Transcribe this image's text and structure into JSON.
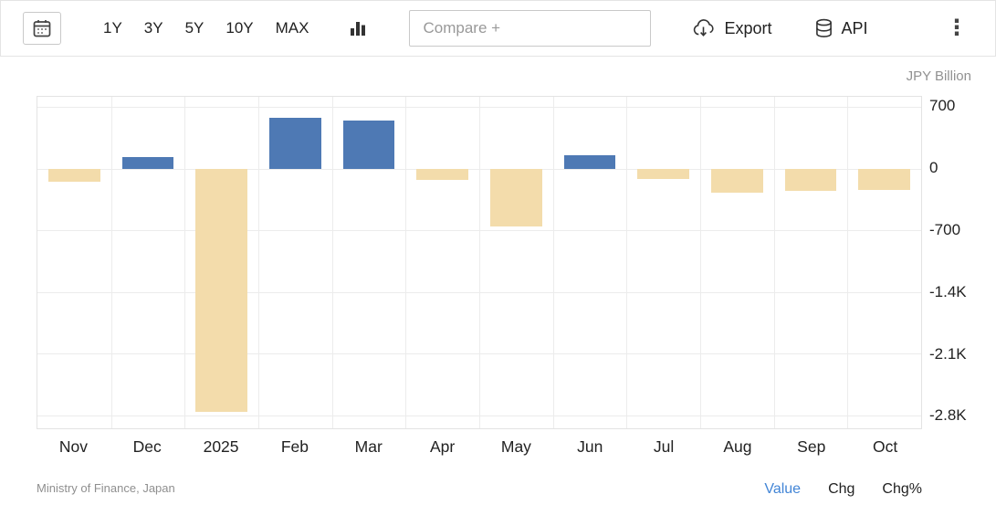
{
  "toolbar": {
    "range_buttons": [
      "1Y",
      "3Y",
      "5Y",
      "10Y",
      "MAX"
    ],
    "compare_placeholder": "Compare +",
    "export_label": "Export",
    "api_label": "API"
  },
  "chart_data": {
    "type": "bar",
    "unit_label": "JPY Billion",
    "categories": [
      "Nov",
      "Dec",
      "2025",
      "Feb",
      "Mar",
      "Apr",
      "May",
      "Jun",
      "Jul",
      "Aug",
      "Sep",
      "Oct"
    ],
    "values": [
      -150,
      130,
      -2760,
      580,
      545,
      -130,
      -660,
      150,
      -120,
      -270,
      -255,
      -245
    ],
    "y_ticks": [
      700,
      0,
      -700,
      -1400,
      -2100,
      -2800
    ],
    "y_tick_labels": [
      "700",
      "0",
      "-700",
      "-1.4K",
      "-2.1K",
      "-2.8K"
    ],
    "ylim": [
      -2950,
      815
    ],
    "grid": true,
    "legend": false,
    "positive_color": "#4e79b4",
    "negative_color": "#f3dcab"
  },
  "footer": {
    "source": "Ministry of Finance, Japan",
    "modes": [
      {
        "label": "Value",
        "active": true
      },
      {
        "label": "Chg",
        "active": false
      },
      {
        "label": "Chg%",
        "active": false
      }
    ]
  }
}
